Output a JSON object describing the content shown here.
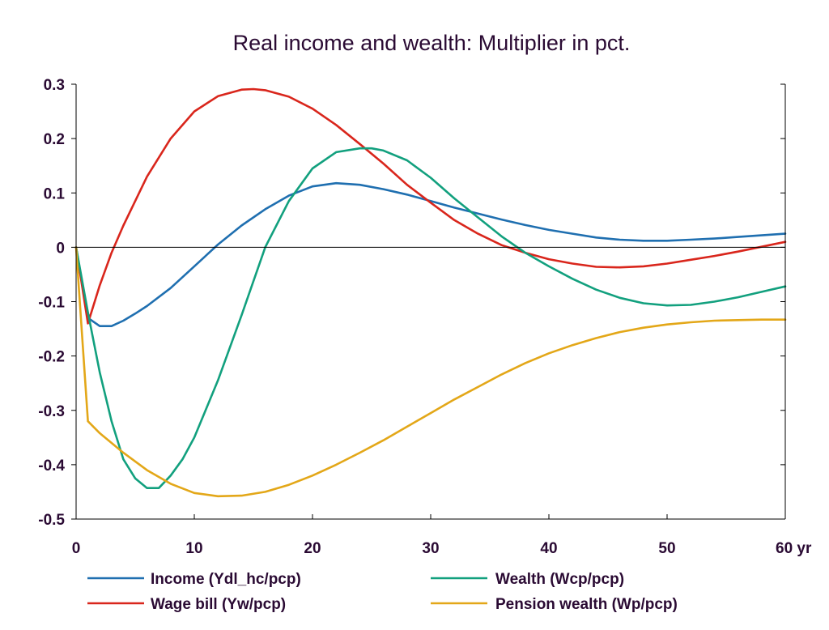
{
  "chart_data": {
    "type": "line",
    "title": "Real income and wealth: Multiplier in pct.",
    "x_unit": "yr",
    "xlim": [
      0,
      60
    ],
    "ylim": [
      -0.5,
      0.3
    ],
    "x_ticks": [
      0,
      10,
      20,
      30,
      40,
      50,
      60
    ],
    "x_tick_labels": [
      "0",
      "10",
      "20",
      "30",
      "40",
      "50",
      "60 yr"
    ],
    "y_ticks": [
      0.3,
      0.2,
      0.1,
      0,
      -0.1,
      -0.2,
      -0.3,
      -0.4,
      -0.5
    ],
    "y_tick_labels": [
      "0.3",
      "0.2",
      "0.1",
      "0",
      "-0.1",
      "-0.2",
      "-0.3",
      "-0.4",
      "-0.5"
    ],
    "grid": false,
    "zero_line": true,
    "legend_position": "bottom",
    "series": [
      {
        "name": "Income (Ydl_hc/pcp)",
        "color": "#1f6fb0",
        "x": [
          0,
          1,
          2,
          3,
          4,
          5,
          6,
          8,
          10,
          12,
          14,
          16,
          18,
          20,
          22,
          24,
          26,
          28,
          30,
          32,
          34,
          36,
          38,
          40,
          42,
          44,
          46,
          48,
          50,
          52,
          54,
          56,
          58,
          60
        ],
        "y": [
          0,
          -0.13,
          -0.145,
          -0.145,
          -0.135,
          -0.122,
          -0.108,
          -0.075,
          -0.035,
          0.005,
          0.04,
          0.07,
          0.095,
          0.112,
          0.118,
          0.115,
          0.107,
          0.097,
          0.085,
          0.073,
          0.062,
          0.051,
          0.041,
          0.032,
          0.025,
          0.018,
          0.014,
          0.012,
          0.012,
          0.014,
          0.016,
          0.019,
          0.022,
          0.025
        ]
      },
      {
        "name": "Wage bill (Yw/pcp)",
        "color": "#d9261c",
        "x": [
          0,
          1,
          2,
          3,
          4,
          6,
          8,
          10,
          12,
          14,
          15,
          16,
          18,
          20,
          22,
          24,
          26,
          28,
          30,
          32,
          34,
          36,
          38,
          40,
          42,
          44,
          46,
          48,
          50,
          52,
          54,
          56,
          58,
          60
        ],
        "y": [
          0,
          -0.14,
          -0.07,
          -0.01,
          0.04,
          0.13,
          0.2,
          0.25,
          0.278,
          0.29,
          0.291,
          0.289,
          0.277,
          0.255,
          0.225,
          0.19,
          0.154,
          0.115,
          0.082,
          0.05,
          0.025,
          0.004,
          -0.01,
          -0.022,
          -0.03,
          -0.036,
          -0.037,
          -0.035,
          -0.03,
          -0.023,
          -0.016,
          -0.008,
          0.001,
          0.01
        ]
      },
      {
        "name": "Wealth (Wcp/pcp)",
        "color": "#12a07e",
        "x": [
          0,
          1,
          2,
          3,
          4,
          5,
          6,
          7,
          8,
          9,
          10,
          12,
          14,
          16,
          18,
          20,
          22,
          24,
          25,
          26,
          28,
          30,
          32,
          34,
          36,
          38,
          40,
          42,
          44,
          46,
          48,
          50,
          52,
          54,
          56,
          58,
          60
        ],
        "y": [
          0,
          -0.12,
          -0.23,
          -0.32,
          -0.39,
          -0.425,
          -0.443,
          -0.443,
          -0.42,
          -0.39,
          -0.35,
          -0.245,
          -0.125,
          0,
          0.085,
          0.145,
          0.175,
          0.182,
          0.182,
          0.178,
          0.16,
          0.128,
          0.09,
          0.055,
          0.02,
          -0.01,
          -0.035,
          -0.058,
          -0.078,
          -0.093,
          -0.103,
          -0.107,
          -0.106,
          -0.1,
          -0.092,
          -0.082,
          -0.072
        ]
      },
      {
        "name": "Pension wealth (Wp/pcp)",
        "color": "#e3a718",
        "x": [
          0,
          1,
          2,
          3,
          4,
          6,
          8,
          10,
          12,
          14,
          16,
          18,
          20,
          22,
          24,
          26,
          28,
          30,
          32,
          34,
          36,
          38,
          40,
          42,
          44,
          46,
          48,
          50,
          52,
          54,
          56,
          58,
          60
        ],
        "y": [
          0,
          -0.32,
          -0.342,
          -0.36,
          -0.378,
          -0.41,
          -0.435,
          -0.452,
          -0.458,
          -0.457,
          -0.45,
          -0.437,
          -0.42,
          -0.4,
          -0.378,
          -0.355,
          -0.33,
          -0.305,
          -0.28,
          -0.257,
          -0.234,
          -0.213,
          -0.195,
          -0.18,
          -0.167,
          -0.156,
          -0.148,
          -0.142,
          -0.138,
          -0.135,
          -0.134,
          -0.133,
          -0.133
        ]
      }
    ]
  }
}
